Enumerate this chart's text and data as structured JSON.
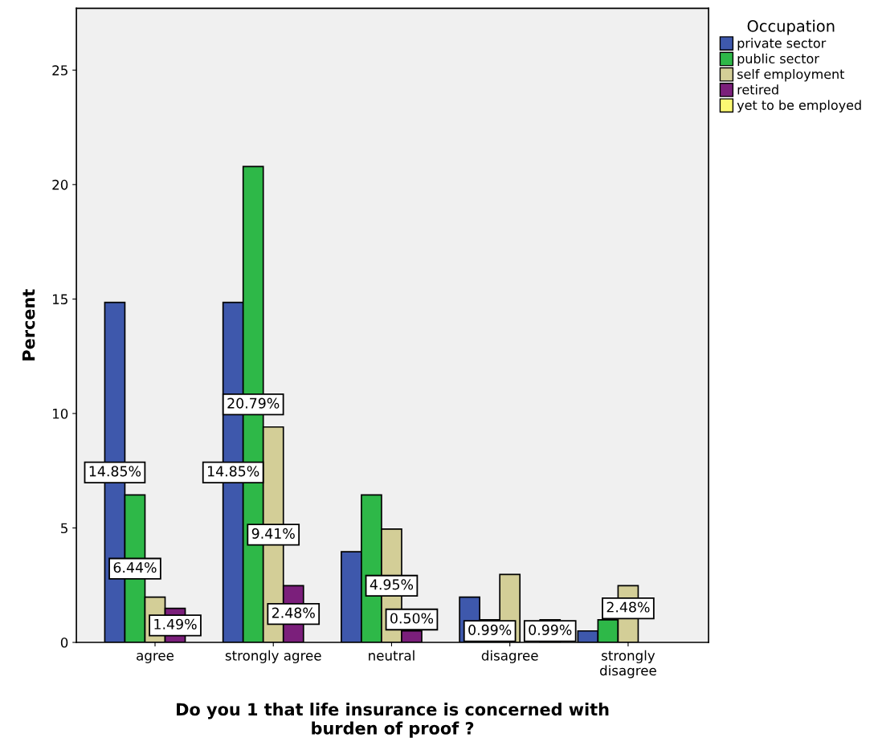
{
  "chart_data": {
    "type": "bar",
    "xlabel": "Do you 1 that life insurance is concerned with\nburden of proof ?",
    "ylabel": "Percent",
    "legend_title": "Occupation",
    "legend": "top right",
    "grid": false,
    "categories": [
      "agree",
      "strongly agree",
      "neutral",
      "disagree",
      "strongly\ndisagree"
    ],
    "ylim": [
      0,
      27.7
    ],
    "yticks": [
      0,
      5,
      10,
      15,
      20,
      25
    ],
    "series": [
      {
        "name": "private sector",
        "color": "#3e58ac",
        "values": [
          14.85,
          14.85,
          3.96,
          1.98,
          0.5
        ],
        "value_labels": [
          "14.85%",
          "14.85%",
          null,
          null,
          null
        ]
      },
      {
        "name": "public sector",
        "color": "#2eb848",
        "values": [
          6.44,
          20.79,
          6.44,
          0.99,
          0.99
        ],
        "value_labels": [
          "6.44%",
          "20.79%",
          null,
          "0.99%",
          null
        ]
      },
      {
        "name": "self employment",
        "color": "#d3ce97",
        "values": [
          1.98,
          9.41,
          4.95,
          2.97,
          2.48
        ],
        "value_labels": [
          null,
          "9.41%",
          "4.95%",
          null,
          "2.48%"
        ]
      },
      {
        "name": "retired",
        "color": "#7b1f7b",
        "values": [
          1.49,
          2.48,
          0.5,
          null,
          null
        ],
        "value_labels": [
          "1.49%",
          "2.48%",
          "0.50%",
          null,
          null
        ]
      },
      {
        "name": "yet to be employed",
        "color": "#fbf873",
        "values": [
          null,
          null,
          null,
          0.99,
          null
        ],
        "value_labels": [
          null,
          null,
          null,
          "0.99%",
          null
        ]
      }
    ]
  }
}
